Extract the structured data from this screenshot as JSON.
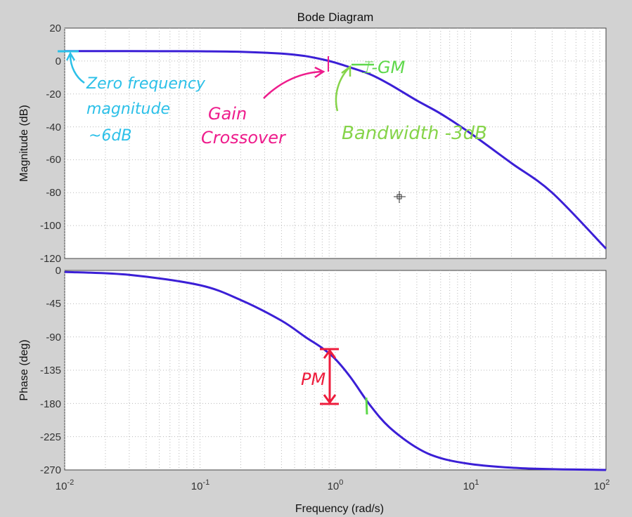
{
  "chart_data": [
    {
      "type": "line",
      "panel": "magnitude",
      "title": "Bode Diagram",
      "ylabel": "Magnitude (dB)",
      "xlabel": "",
      "xscale": "log",
      "xlim": [
        0.01,
        100
      ],
      "ylim": [
        -120,
        20
      ],
      "yticks": [
        "20",
        "0",
        "-20",
        "-40",
        "-60",
        "-80",
        "-100",
        "-120"
      ],
      "grid": true,
      "series": [
        {
          "color": "#3b1fd6",
          "x": [
            0.01,
            0.03,
            0.1,
            0.2,
            0.4,
            0.6,
            0.8,
            1.0,
            1.3,
            1.8,
            2.5,
            4,
            6,
            10,
            20,
            40,
            100
          ],
          "y": [
            6,
            6,
            5.9,
            5.6,
            4.5,
            3,
            1,
            -1,
            -4,
            -8,
            -14,
            -24,
            -32,
            -44,
            -62,
            -80,
            -114
          ]
        }
      ],
      "annotations": [
        {
          "text_lines": [
            "Zero frequency",
            "magnitude",
            "~6dB"
          ],
          "color": "#2cc0e8"
        },
        {
          "text_lines": [
            "Gain",
            "Crossover"
          ],
          "color": "#ee1c8c"
        },
        {
          "text": "Bandwidth -3dB",
          "color": "#86d44a"
        },
        {
          "text": "⌶-GM",
          "color": "#5ed84a"
        }
      ]
    },
    {
      "type": "line",
      "panel": "phase",
      "ylabel": "Phase (deg)",
      "xlabel": "Frequency  (rad/s)",
      "xscale": "log",
      "xlim": [
        0.01,
        100
      ],
      "ylim": [
        -270,
        0
      ],
      "yticks": [
        "0",
        "-45",
        "-90",
        "-135",
        "-180",
        "-225",
        "-270"
      ],
      "xticks": [
        {
          "base": "10",
          "exp": "-2"
        },
        {
          "base": "10",
          "exp": "-1"
        },
        {
          "base": "10",
          "exp": "0"
        },
        {
          "base": "10",
          "exp": "1"
        },
        {
          "base": "10",
          "exp": "2"
        }
      ],
      "grid": true,
      "series": [
        {
          "color": "#3b1fd6",
          "x": [
            0.01,
            0.03,
            0.1,
            0.2,
            0.4,
            0.6,
            0.8,
            1.0,
            1.3,
            1.8,
            2.5,
            4,
            6,
            10,
            20,
            40,
            100
          ],
          "y": [
            -2,
            -6,
            -20,
            -40,
            -68,
            -90,
            -105,
            -120,
            -145,
            -182,
            -212,
            -240,
            -254,
            -262,
            -267,
            -269,
            -270
          ]
        }
      ],
      "annotations": [
        {
          "text": "PM",
          "color": "#ee1c3c"
        }
      ]
    }
  ]
}
